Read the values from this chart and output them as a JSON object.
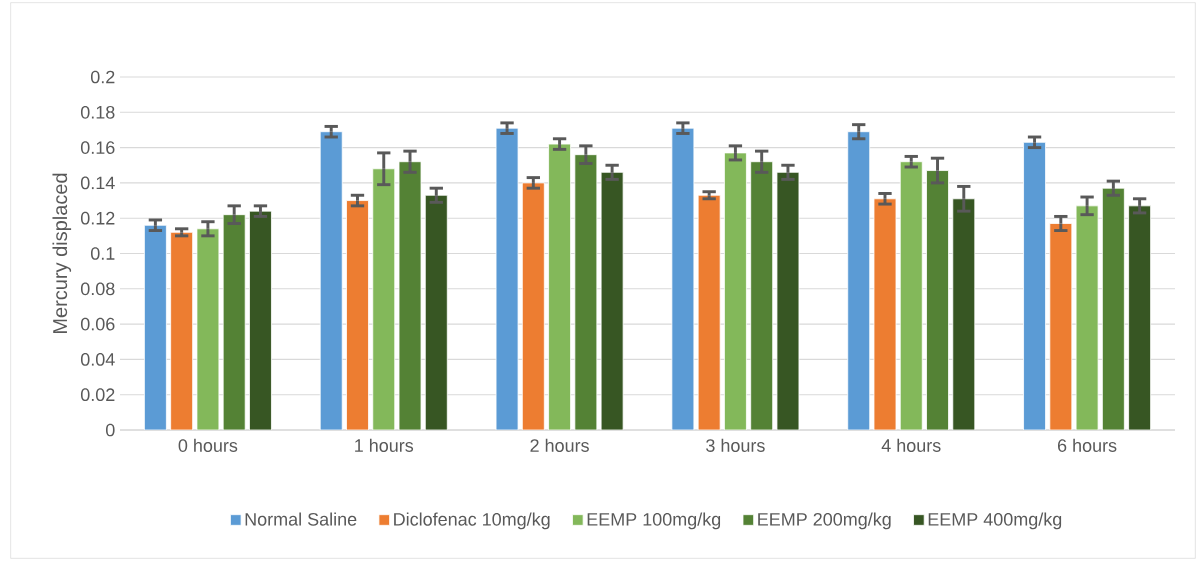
{
  "chart_data": {
    "type": "bar",
    "ylabel": "Mercury displaced",
    "categories": [
      "0 hours",
      "1 hours",
      "2 hours",
      "3 hours",
      "4 hours",
      "6 hours"
    ],
    "series": [
      {
        "name": "Normal Saline",
        "color": "#5b9bd5",
        "values": [
          0.116,
          0.169,
          0.171,
          0.171,
          0.169,
          0.163
        ],
        "errors": [
          0.003,
          0.003,
          0.003,
          0.003,
          0.004,
          0.003
        ]
      },
      {
        "name": "Diclofenac 10mg/kg",
        "color": "#ed7d31",
        "values": [
          0.112,
          0.13,
          0.14,
          0.133,
          0.131,
          0.117
        ],
        "errors": [
          0.002,
          0.003,
          0.003,
          0.002,
          0.003,
          0.004
        ]
      },
      {
        "name": "EEMP 100mg/kg",
        "color": "#83b85a",
        "values": [
          0.114,
          0.148,
          0.162,
          0.157,
          0.152,
          0.127
        ],
        "errors": [
          0.004,
          0.009,
          0.003,
          0.004,
          0.003,
          0.005
        ]
      },
      {
        "name": "EEMP 200mg/kg",
        "color": "#548235",
        "values": [
          0.122,
          0.152,
          0.156,
          0.152,
          0.147,
          0.137
        ],
        "errors": [
          0.005,
          0.006,
          0.005,
          0.006,
          0.007,
          0.004
        ]
      },
      {
        "name": "EEMP 400mg/kg",
        "color": "#375623",
        "values": [
          0.124,
          0.133,
          0.146,
          0.146,
          0.131,
          0.127
        ],
        "errors": [
          0.003,
          0.004,
          0.004,
          0.004,
          0.007,
          0.004
        ]
      }
    ],
    "ylim": [
      0,
      0.2
    ],
    "yticks": [
      0,
      0.02,
      0.04,
      0.06,
      0.08,
      0.1,
      0.12,
      0.14,
      0.16,
      0.18,
      0.2
    ],
    "grid": "y",
    "legend": "bottom"
  }
}
